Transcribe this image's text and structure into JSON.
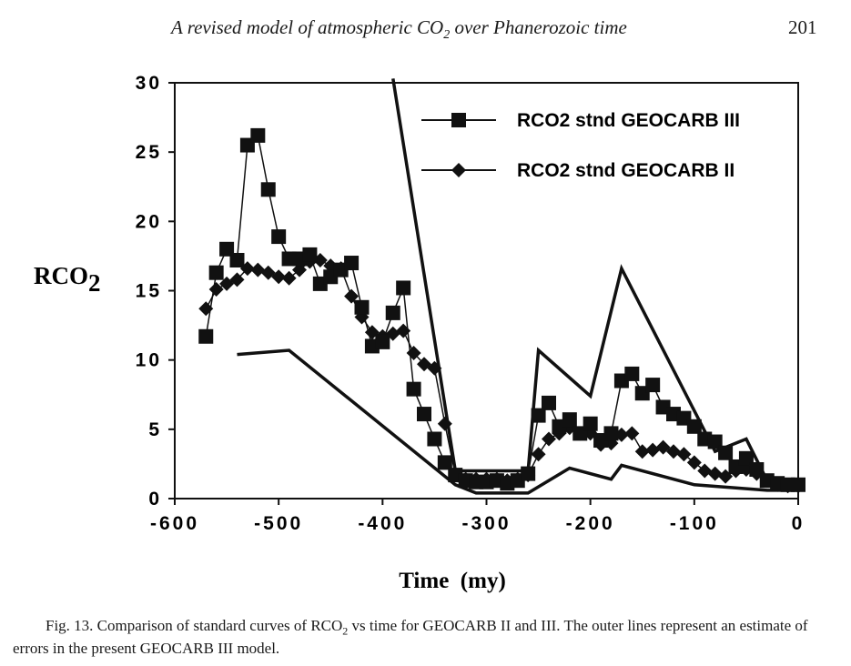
{
  "header": {
    "title": "A revised model of atmospheric CO₂ over Phanerozoic time",
    "page_number": "201"
  },
  "caption": "Fig. 13. Comparison of standard curves of RCO₂ vs time for GEOCARB II and III. The outer lines represent an estimate of errors in the present GEOCARB III model.",
  "chart_data": {
    "type": "line",
    "xlabel": "Time  (my)",
    "ylabel": "RCO2",
    "xlim": [
      -600,
      0
    ],
    "ylim": [
      0,
      30
    ],
    "x_ticks": [
      -600,
      -500,
      -400,
      -300,
      -200,
      -100,
      0
    ],
    "y_ticks": [
      0,
      5,
      10,
      15,
      20,
      25,
      30
    ],
    "legend_position": "top-right",
    "grid": false,
    "series": [
      {
        "name": "RCO2 stnd GEOCARB III",
        "marker": "square",
        "points": [
          [
            -570,
            11.7
          ],
          [
            -560,
            16.3
          ],
          [
            -550,
            18
          ],
          [
            -540,
            17.2
          ],
          [
            -530,
            25.5
          ],
          [
            -520,
            26.2
          ],
          [
            -510,
            22.3
          ],
          [
            -500,
            18.9
          ],
          [
            -490,
            17.3
          ],
          [
            -480,
            17.3
          ],
          [
            -470,
            17.6
          ],
          [
            -460,
            15.5
          ],
          [
            -450,
            16
          ],
          [
            -440,
            16.5
          ],
          [
            -430,
            17
          ],
          [
            -420,
            13.8
          ],
          [
            -410,
            11
          ],
          [
            -400,
            11.3
          ],
          [
            -390,
            13.4
          ],
          [
            -380,
            15.2
          ],
          [
            -370,
            7.9
          ],
          [
            -360,
            6.1
          ],
          [
            -350,
            4.3
          ],
          [
            -340,
            2.6
          ],
          [
            -330,
            1.7
          ],
          [
            -320,
            1.3
          ],
          [
            -310,
            1.2
          ],
          [
            -300,
            1.2
          ],
          [
            -290,
            1.3
          ],
          [
            -280,
            1.1
          ],
          [
            -270,
            1.3
          ],
          [
            -260,
            1.8
          ],
          [
            -250,
            6
          ],
          [
            -240,
            6.9
          ],
          [
            -230,
            5.2
          ],
          [
            -220,
            5.7
          ],
          [
            -210,
            4.7
          ],
          [
            -200,
            5.4
          ],
          [
            -190,
            4.2
          ],
          [
            -180,
            4.7
          ],
          [
            -170,
            8.5
          ],
          [
            -160,
            9
          ],
          [
            -150,
            7.6
          ],
          [
            -140,
            8.2
          ],
          [
            -130,
            6.6
          ],
          [
            -120,
            6.1
          ],
          [
            -110,
            5.8
          ],
          [
            -100,
            5.2
          ],
          [
            -90,
            4.3
          ],
          [
            -80,
            4.1
          ],
          [
            -70,
            3.3
          ],
          [
            -60,
            2.3
          ],
          [
            -50,
            2.9
          ],
          [
            -40,
            2.1
          ],
          [
            -30,
            1.3
          ],
          [
            -20,
            1.1
          ],
          [
            -10,
            1
          ],
          [
            0,
            1
          ]
        ]
      },
      {
        "name": "RCO2 stnd GEOCARB II",
        "marker": "diamond",
        "points": [
          [
            -570,
            13.7
          ],
          [
            -560,
            15.1
          ],
          [
            -550,
            15.5
          ],
          [
            -540,
            15.8
          ],
          [
            -530,
            16.6
          ],
          [
            -520,
            16.5
          ],
          [
            -510,
            16.3
          ],
          [
            -500,
            16
          ],
          [
            -490,
            15.9
          ],
          [
            -480,
            16.5
          ],
          [
            -470,
            17.1
          ],
          [
            -460,
            17.2
          ],
          [
            -450,
            16.8
          ],
          [
            -440,
            16.6
          ],
          [
            -430,
            14.6
          ],
          [
            -420,
            13.1
          ],
          [
            -410,
            12
          ],
          [
            -400,
            11.7
          ],
          [
            -390,
            11.9
          ],
          [
            -380,
            12.1
          ],
          [
            -370,
            10.5
          ],
          [
            -360,
            9.7
          ],
          [
            -350,
            9.4
          ],
          [
            -340,
            5.4
          ],
          [
            -330,
            1.7
          ],
          [
            -320,
            1.4
          ],
          [
            -310,
            1.4
          ],
          [
            -300,
            1.4
          ],
          [
            -290,
            1.4
          ],
          [
            -280,
            1.3
          ],
          [
            -270,
            1.4
          ],
          [
            -260,
            1.7
          ],
          [
            -250,
            3.2
          ],
          [
            -240,
            4.3
          ],
          [
            -230,
            4.7
          ],
          [
            -220,
            5.1
          ],
          [
            -210,
            4.7
          ],
          [
            -200,
            4.7
          ],
          [
            -190,
            3.9
          ],
          [
            -180,
            4
          ],
          [
            -170,
            4.6
          ],
          [
            -160,
            4.7
          ],
          [
            -150,
            3.4
          ],
          [
            -140,
            3.5
          ],
          [
            -130,
            3.7
          ],
          [
            -120,
            3.4
          ],
          [
            -110,
            3.2
          ],
          [
            -100,
            2.6
          ],
          [
            -90,
            2
          ],
          [
            -80,
            1.8
          ],
          [
            -70,
            1.6
          ],
          [
            -60,
            2
          ],
          [
            -50,
            2.1
          ],
          [
            -40,
            1.8
          ],
          [
            -30,
            1.3
          ],
          [
            -20,
            1
          ],
          [
            -10,
            0.9
          ],
          [
            0,
            0.9
          ]
        ]
      },
      {
        "role": "upper error bound",
        "points": [
          [
            -390,
            30.3
          ],
          [
            -330,
            2
          ],
          [
            -260,
            2
          ],
          [
            -250,
            10.7
          ],
          [
            -200,
            7.4
          ],
          [
            -170,
            16.6
          ],
          [
            -80,
            3.4
          ],
          [
            -50,
            4.3
          ],
          [
            -30,
            1.3
          ],
          [
            0,
            1.1
          ]
        ]
      },
      {
        "role": "lower error bound",
        "points": [
          [
            -540,
            10.4
          ],
          [
            -490,
            10.7
          ],
          [
            -330,
            1
          ],
          [
            -310,
            0.4
          ],
          [
            -260,
            0.4
          ],
          [
            -220,
            2.2
          ],
          [
            -180,
            1.4
          ],
          [
            -170,
            2.4
          ],
          [
            -100,
            1
          ],
          [
            -30,
            0.6
          ],
          [
            0,
            0.6
          ]
        ]
      }
    ]
  }
}
